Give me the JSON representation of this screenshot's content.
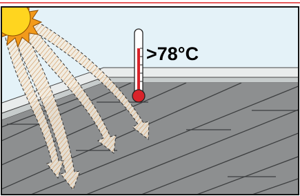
{
  "thermometer": {
    "label": ">78°C"
  }
}
